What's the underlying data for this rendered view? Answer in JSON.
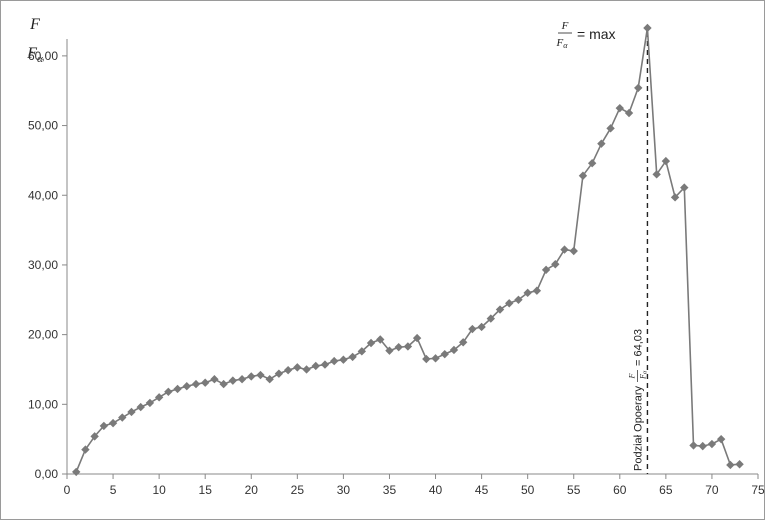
{
  "chart_data": {
    "type": "line",
    "title": "",
    "xlabel": "",
    "ylabel": {
      "numerator": "F",
      "denominator": "F",
      "denominator_sub": "α"
    },
    "xlim": [
      0,
      75
    ],
    "ylim": [
      0,
      64
    ],
    "grid": false,
    "x_ticks": [
      "0",
      "5",
      "10",
      "15",
      "20",
      "25",
      "30",
      "35",
      "40",
      "45",
      "50",
      "55",
      "60",
      "65",
      "70",
      "75"
    ],
    "y_ticks": [
      "0,00",
      "10,00",
      "20,00",
      "30,00",
      "40,00",
      "50,00",
      "60,00"
    ],
    "marker": "diamond",
    "colors": {
      "series": "#7a7a7a",
      "axis": "#888888"
    },
    "series": [
      {
        "x": [
          1,
          2,
          3,
          4,
          5,
          6,
          7,
          8,
          9,
          10,
          11,
          12,
          13,
          14,
          15,
          16,
          17,
          18,
          19,
          20,
          21,
          22,
          23,
          24,
          25,
          26,
          27,
          28,
          29,
          30,
          31,
          32,
          33,
          34,
          35,
          36,
          37,
          38,
          39,
          40,
          41,
          42,
          43,
          44,
          45,
          46,
          47,
          48,
          49,
          50,
          51,
          52,
          53,
          54,
          55,
          56,
          57,
          58,
          59,
          60,
          61,
          62,
          63,
          64,
          65,
          66,
          67,
          68,
          69,
          70,
          71,
          72,
          73
        ],
        "values": [
          0.3,
          3.5,
          5.4,
          6.9,
          7.3,
          8.1,
          8.9,
          9.6,
          10.2,
          11.0,
          11.8,
          12.2,
          12.6,
          12.9,
          13.1,
          13.6,
          12.9,
          13.4,
          13.6,
          14.0,
          14.2,
          13.6,
          14.4,
          14.9,
          15.3,
          15.0,
          15.5,
          15.7,
          16.2,
          16.4,
          16.8,
          17.6,
          18.8,
          19.3,
          17.7,
          18.2,
          18.3,
          19.5,
          16.5,
          16.6,
          17.2,
          17.8,
          18.9,
          20.8,
          21.1,
          22.3,
          23.6,
          24.5,
          25.0,
          26.0,
          26.3,
          29.3,
          30.1,
          32.2,
          32.0,
          42.8,
          44.6,
          47.4,
          49.6,
          52.5,
          51.8,
          55.4,
          64.0,
          43.0,
          44.9,
          39.7,
          41.1,
          4.1,
          4.0,
          4.3,
          5.0,
          1.3,
          1.4
        ]
      }
    ],
    "annotations": {
      "peak": {
        "numerator": "F",
        "denominator": "F",
        "denominator_sub": "α",
        "suffix": "= max"
      },
      "vline": {
        "x": 63,
        "label_prefix": "Podział Opoerary",
        "label_numerator": "F",
        "label_denominator": "F",
        "label_denominator_sub": "α",
        "label_suffix": "= 64,03"
      }
    }
  }
}
